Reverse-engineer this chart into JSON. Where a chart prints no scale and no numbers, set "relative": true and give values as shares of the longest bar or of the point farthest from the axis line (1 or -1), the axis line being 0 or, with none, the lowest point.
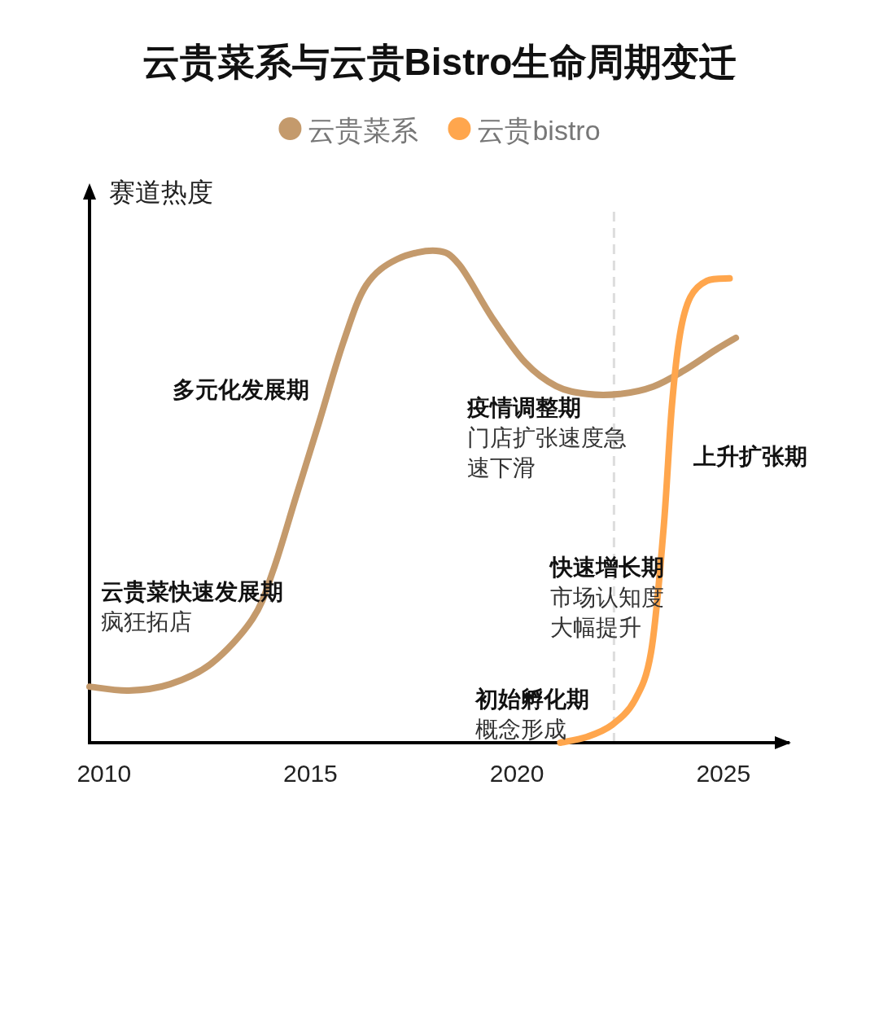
{
  "chart_data": {
    "type": "line",
    "title": "云贵菜系与云贵Bistro生命周期变迁",
    "ylabel": "赛道热度",
    "relative": true,
    "legend": "top",
    "xlim": [
      2009.65,
      2026.6
    ],
    "xticks": [
      2010,
      2015,
      2020,
      2025
    ],
    "series": [
      {
        "name": "云贵菜系",
        "color": "#c49a6c",
        "x": [
          2009.65,
          2010.6,
          2011.6,
          2012.6,
          2013.6,
          2014.1,
          2014.65,
          2015.2,
          2015.8,
          2016.35,
          2017.1,
          2018.05,
          2018.6,
          2019.4,
          2020.2,
          2020.95,
          2021.7,
          2022.5,
          2023.3,
          2024.05,
          2024.8,
          2025.3
        ],
        "values": [
          0.114,
          0.106,
          0.119,
          0.161,
          0.252,
          0.351,
          0.5,
          0.649,
          0.815,
          0.93,
          0.983,
          1.0,
          0.972,
          0.864,
          0.773,
          0.725,
          0.709,
          0.709,
          0.724,
          0.757,
          0.798,
          0.823
        ]
      },
      {
        "name": "云贵bistro",
        "color": "#ffa64d",
        "x": [
          2021.05,
          2021.7,
          2022.3,
          2022.85,
          2023.25,
          2023.55,
          2023.75,
          2023.95,
          2024.2,
          2024.6,
          2025.15
        ],
        "values": [
          0,
          0.012,
          0.036,
          0.086,
          0.185,
          0.434,
          0.682,
          0.831,
          0.906,
          0.939,
          0.944
        ]
      }
    ],
    "ref_lines": [
      {
        "axis": "x",
        "value": 2022.35,
        "color": "#dddddd",
        "line_style": "dashed"
      }
    ],
    "annotations": [
      "云贵菜快速发展期",
      "疯狂拓店",
      "多元化发展期",
      "疫情调整期",
      "门店扩张速度急速下滑",
      "快速增长期",
      "市场认知度大幅提升",
      "初始孵化期",
      "概念形成",
      "上升扩张期"
    ]
  }
}
